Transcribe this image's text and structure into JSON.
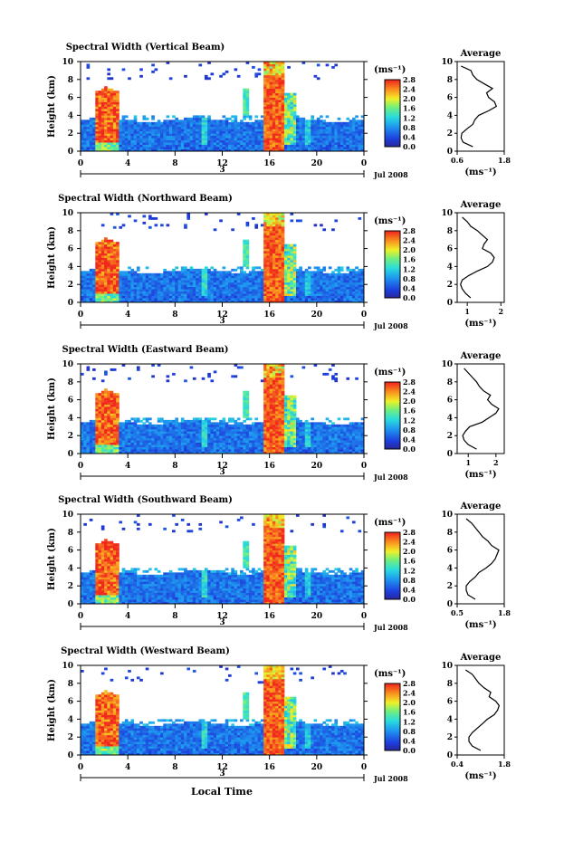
{
  "figure": {
    "xlabel_bottom": "Local Time",
    "date_label": "Jul 2008",
    "day_label": "3",
    "cbar_unit": "(ms⁻¹)",
    "cbar_ticks": [
      "0.0",
      "0.4",
      "0.8",
      "1.2",
      "1.6",
      "2.0",
      "2.4",
      "2.8"
    ],
    "avg_title": "Average",
    "avg_xlabel": "(ms⁻¹)"
  },
  "chart_data": [
    {
      "type": "heatmap",
      "title": "Spectral Width (Vertical Beam)",
      "ylabel": "Height (km)",
      "xticks": [
        "0",
        "4",
        "8",
        "12",
        "16",
        "20",
        "0"
      ],
      "yticks": [
        "0",
        "2",
        "4",
        "6",
        "8",
        "10"
      ],
      "xlim": [
        0,
        24
      ],
      "ylim": [
        0,
        10
      ],
      "colorbar": {
        "unit": "ms-1",
        "range": [
          0,
          2.8
        ]
      },
      "average_profile": {
        "title": "Average",
        "xticks": [
          "0.6",
          "1.8"
        ],
        "xlim": [
          0.6,
          1.8
        ],
        "height": [
          0.5,
          1.0,
          1.5,
          2.0,
          2.5,
          3.0,
          3.5,
          4.0,
          4.5,
          5.0,
          5.5,
          6.0,
          6.5,
          7.0,
          7.5,
          8.0,
          8.5,
          9.0,
          9.5
        ],
        "width": [
          1.0,
          0.75,
          0.7,
          0.72,
          0.85,
          1.0,
          1.05,
          1.15,
          1.4,
          1.6,
          1.55,
          1.4,
          1.35,
          1.5,
          1.3,
          1.1,
          1.0,
          0.95,
          0.7
        ]
      }
    },
    {
      "type": "heatmap",
      "title": "Spectral Width (Northward Beam)",
      "ylabel": "Height (km)",
      "xticks": [
        "0",
        "4",
        "8",
        "12",
        "16",
        "20",
        "0"
      ],
      "yticks": [
        "0",
        "2",
        "4",
        "6",
        "8",
        "10"
      ],
      "xlim": [
        0,
        24
      ],
      "ylim": [
        0,
        10
      ],
      "colorbar": {
        "unit": "ms-1",
        "range": [
          0,
          2.8
        ]
      },
      "average_profile": {
        "title": "Average",
        "xticks": [
          "1",
          "2"
        ],
        "xlim": [
          0.7,
          2.1
        ],
        "height": [
          0.5,
          1.0,
          1.5,
          2.0,
          2.5,
          3.0,
          3.5,
          4.0,
          4.5,
          5.0,
          5.5,
          6.0,
          6.5,
          7.0,
          7.5,
          8.0,
          8.5,
          9.0,
          9.5
        ],
        "width": [
          1.1,
          0.95,
          0.85,
          0.8,
          0.85,
          1.05,
          1.3,
          1.6,
          1.75,
          1.8,
          1.7,
          1.45,
          1.5,
          1.6,
          1.45,
          1.3,
          1.1,
          1.0,
          0.85
        ]
      }
    },
    {
      "type": "heatmap",
      "title": "Spectral Width (Eastward Beam)",
      "ylabel": "Height (km)",
      "xticks": [
        "0",
        "4",
        "8",
        "12",
        "16",
        "20",
        "0"
      ],
      "yticks": [
        "0",
        "2",
        "4",
        "6",
        "8",
        "10"
      ],
      "xlim": [
        0,
        24
      ],
      "ylim": [
        0,
        10
      ],
      "colorbar": {
        "unit": "ms-1",
        "range": [
          0,
          2.8
        ]
      },
      "average_profile": {
        "title": "Average",
        "xticks": [
          "1",
          "2"
        ],
        "xlim": [
          0.6,
          2.3
        ],
        "height": [
          0.5,
          1.0,
          1.5,
          2.0,
          2.5,
          3.0,
          3.5,
          4.0,
          4.5,
          5.0,
          5.5,
          6.0,
          6.5,
          7.0,
          7.5,
          8.0,
          8.5,
          9.0,
          9.5
        ],
        "width": [
          1.3,
          1.0,
          0.85,
          0.8,
          0.9,
          1.05,
          1.5,
          1.75,
          2.0,
          2.1,
          1.85,
          1.7,
          1.8,
          1.55,
          1.4,
          1.3,
          1.15,
          1.0,
          0.85
        ]
      }
    },
    {
      "type": "heatmap",
      "title": "Spectral Width (Southward Beam)",
      "ylabel": "Height (km)",
      "xticks": [
        "0",
        "4",
        "8",
        "12",
        "16",
        "20",
        "0"
      ],
      "yticks": [
        "0",
        "2",
        "4",
        "6",
        "8",
        "10"
      ],
      "xlim": [
        0,
        24
      ],
      "ylim": [
        0,
        10
      ],
      "colorbar": {
        "unit": "ms-1",
        "range": [
          0,
          2.8
        ]
      },
      "average_profile": {
        "title": "Average",
        "xticks": [
          "0.5",
          "1.8"
        ],
        "xlim": [
          0.5,
          1.8
        ],
        "height": [
          0.5,
          1.0,
          1.5,
          2.0,
          2.5,
          3.0,
          3.5,
          4.0,
          4.5,
          5.0,
          5.5,
          6.0,
          6.5,
          7.0,
          7.5,
          8.0,
          8.5,
          9.0,
          9.5
        ],
        "width": [
          1.0,
          0.8,
          0.75,
          0.75,
          0.85,
          1.0,
          1.1,
          1.3,
          1.45,
          1.55,
          1.6,
          1.65,
          1.45,
          1.35,
          1.2,
          1.1,
          1.0,
          0.9,
          0.75
        ]
      }
    },
    {
      "type": "heatmap",
      "title": "Spectral Width (Westward Beam)",
      "ylabel": "Height (km)",
      "xticks": [
        "0",
        "4",
        "8",
        "12",
        "16",
        "20",
        "0"
      ],
      "yticks": [
        "0",
        "2",
        "4",
        "6",
        "8",
        "10"
      ],
      "xlim": [
        0,
        24
      ],
      "ylim": [
        0,
        10
      ],
      "colorbar": {
        "unit": "ms-1",
        "range": [
          0,
          2.8
        ]
      },
      "average_profile": {
        "title": "Average",
        "xticks": [
          "0.4",
          "1.8"
        ],
        "xlim": [
          0.4,
          1.8
        ],
        "height": [
          0.5,
          1.0,
          1.5,
          2.0,
          2.5,
          3.0,
          3.5,
          4.0,
          4.5,
          5.0,
          5.5,
          6.0,
          6.5,
          7.0,
          7.5,
          8.0,
          8.5,
          9.0,
          9.5
        ],
        "width": [
          1.1,
          0.85,
          0.75,
          0.75,
          0.85,
          1.0,
          1.15,
          1.3,
          1.5,
          1.6,
          1.65,
          1.55,
          1.35,
          1.4,
          1.2,
          1.05,
          0.95,
          0.85,
          0.65
        ]
      }
    }
  ]
}
